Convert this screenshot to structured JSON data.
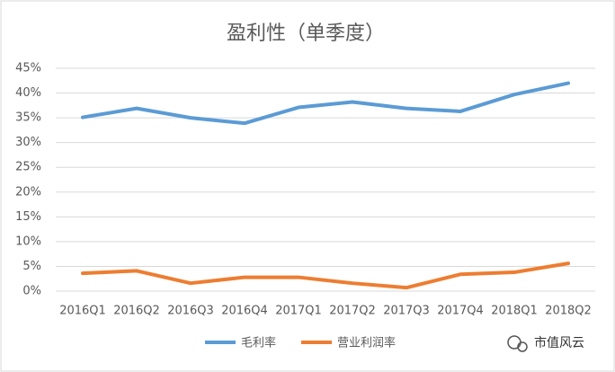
{
  "chart_data": {
    "type": "line",
    "title": "盈利性（单季度）",
    "categories": [
      "2016Q1",
      "2016Q2",
      "2016Q3",
      "2016Q4",
      "2017Q1",
      "2017Q2",
      "2017Q3",
      "2017Q4",
      "2018Q1",
      "2018Q2"
    ],
    "series": [
      {
        "name": "毛利率",
        "color": "#5b9bd5",
        "values": [
          35.1,
          36.9,
          35.0,
          33.9,
          37.1,
          38.2,
          36.9,
          36.3,
          39.7,
          42.0
        ]
      },
      {
        "name": "营业利润率",
        "color": "#ed7d31",
        "values": [
          3.6,
          4.1,
          1.6,
          2.8,
          2.8,
          1.6,
          0.7,
          3.4,
          3.8,
          5.6
        ]
      }
    ],
    "ylim": [
      0,
      45
    ],
    "yticks": [
      {
        "value": 0,
        "label": "0%"
      },
      {
        "value": 5,
        "label": "5%"
      },
      {
        "value": 10,
        "label": "10%"
      },
      {
        "value": 15,
        "label": "15%"
      },
      {
        "value": 20,
        "label": "20%"
      },
      {
        "value": 25,
        "label": "25%"
      },
      {
        "value": 30,
        "label": "30%"
      },
      {
        "value": 35,
        "label": "35%"
      },
      {
        "value": 40,
        "label": "40%"
      },
      {
        "value": 45,
        "label": "45%"
      }
    ],
    "grid": true,
    "legend": "bottom",
    "watermark": "市值风云"
  }
}
